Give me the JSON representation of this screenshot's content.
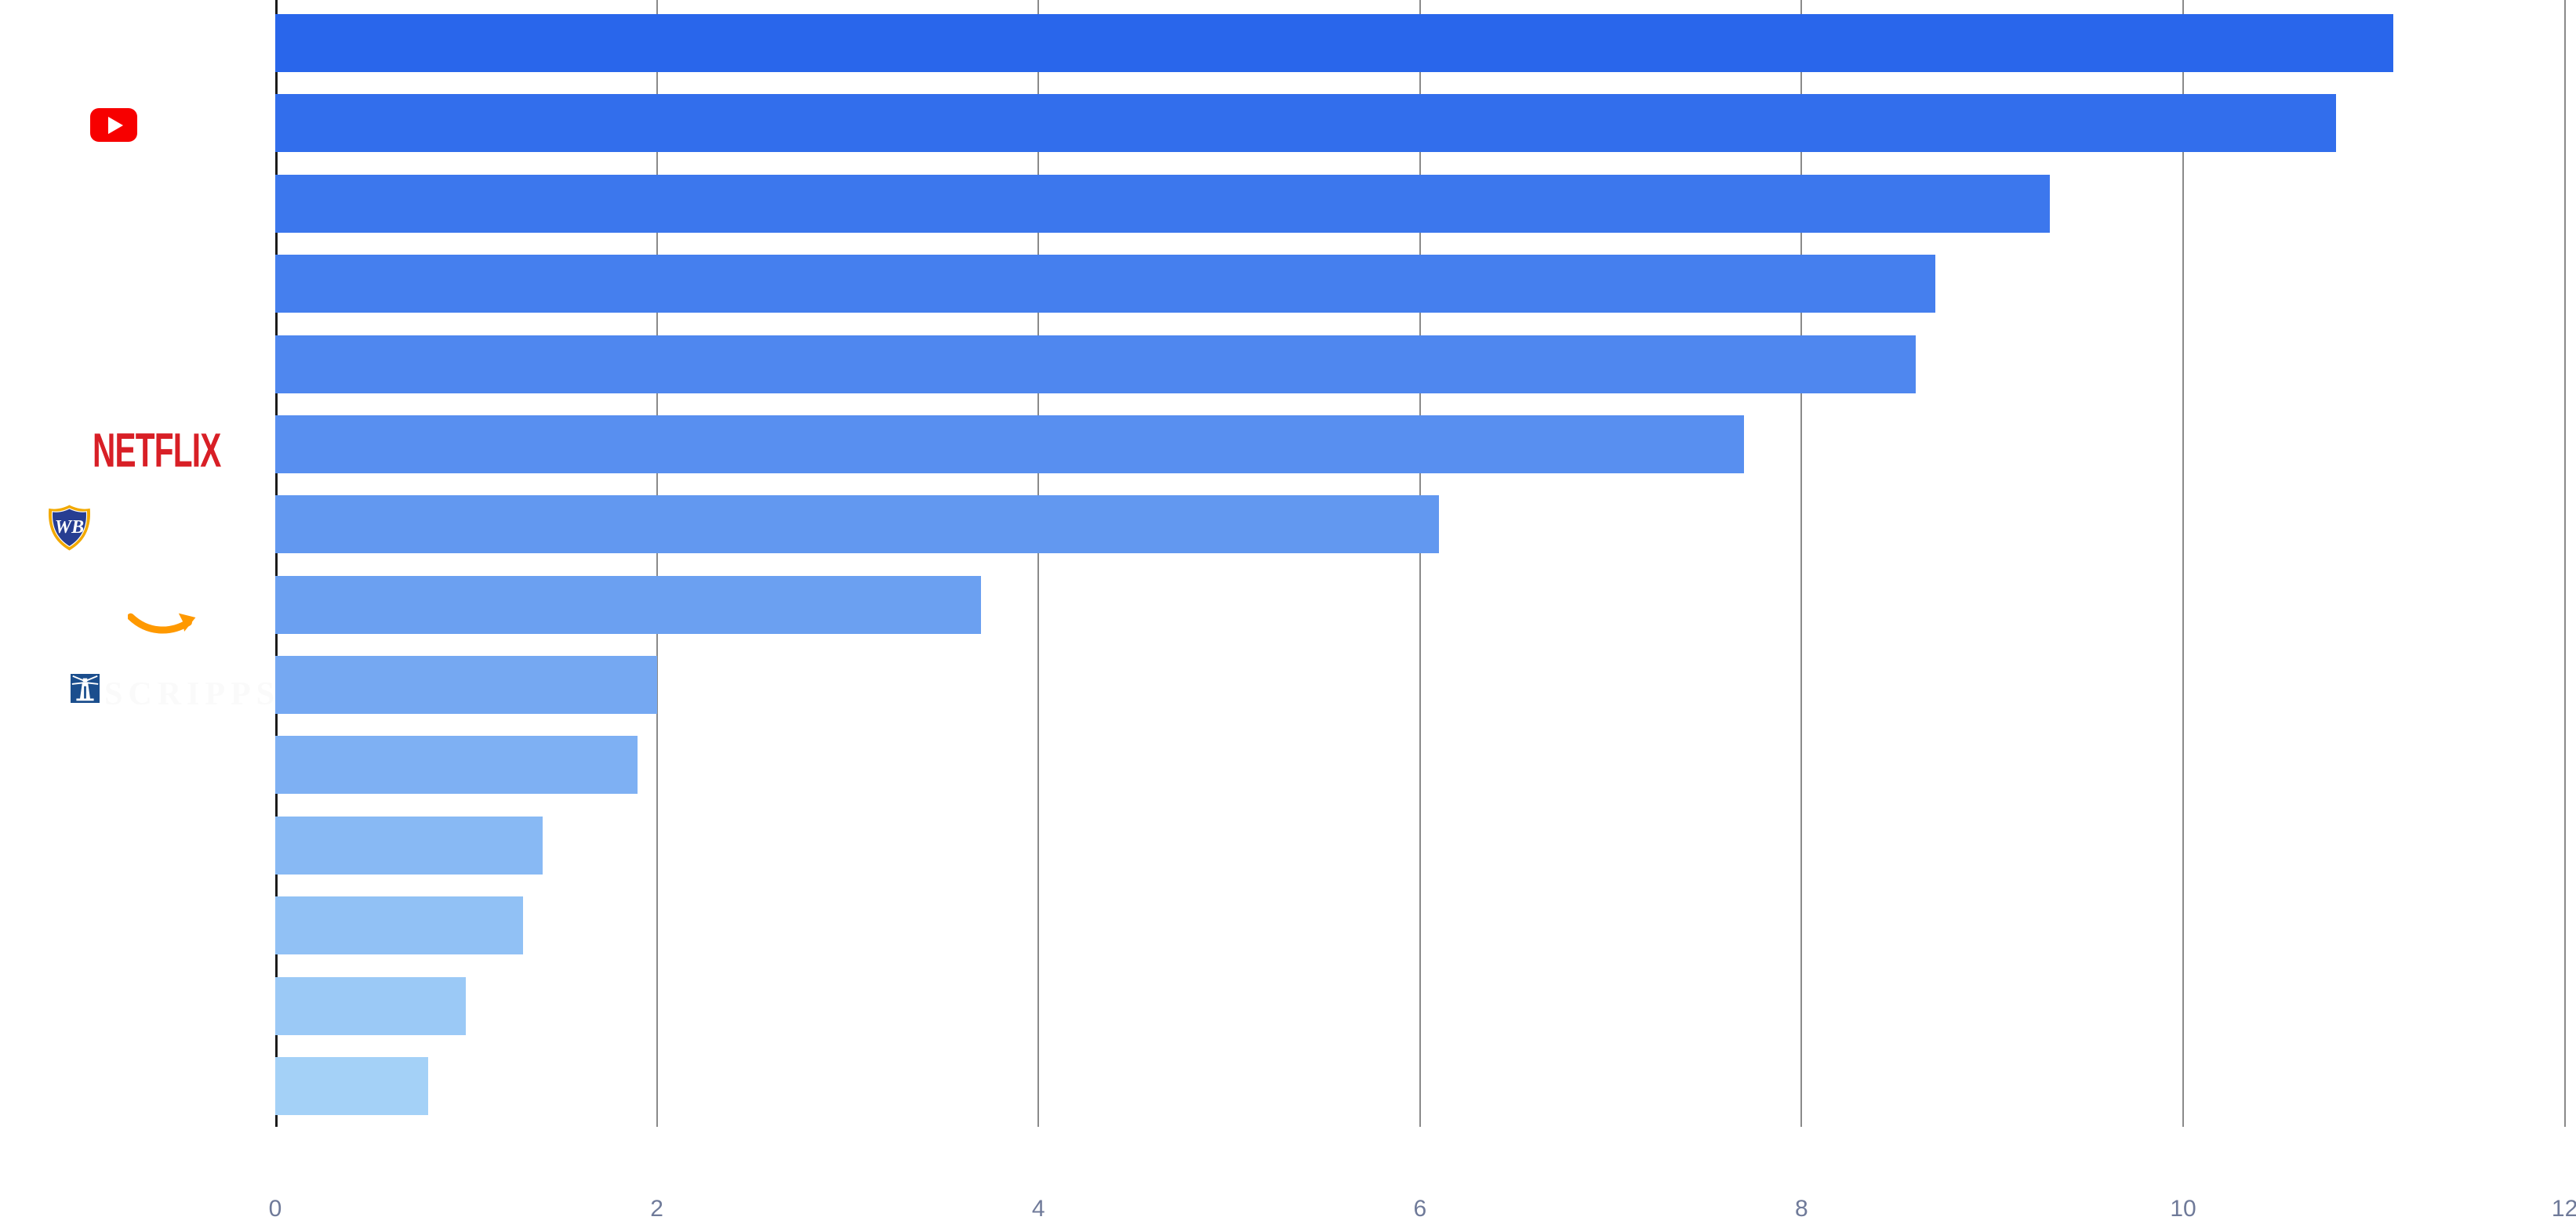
{
  "chart_data": {
    "type": "bar",
    "orientation": "horizontal",
    "title": "",
    "categories": [
      "",
      "YouTube",
      "",
      "",
      "",
      "Netflix",
      "Warner Bros.",
      "Amazon",
      "Scripps",
      "",
      "",
      "",
      "",
      ""
    ],
    "values": [
      11.1,
      10.8,
      9.3,
      8.7,
      8.6,
      7.7,
      6.1,
      3.7,
      2.0,
      1.9,
      1.4,
      1.3,
      1.0,
      0.8
    ],
    "bar_colors": [
      "#2966EB",
      "#326EEC",
      "#3C77ED",
      "#457FEE",
      "#4F87EF",
      "#588FF0",
      "#6298F0",
      "#6BA0F1",
      "#75A8F2",
      "#7EB0F3",
      "#88B9F4",
      "#91C1F5",
      "#9BC9F6",
      "#A4D1F7"
    ],
    "x_ticks": [
      "0",
      "2",
      "4",
      "6",
      "8",
      "10",
      "12"
    ],
    "xlim": [
      0,
      12.05
    ],
    "grid": true,
    "legend_position": "none",
    "axis_label_color": "#6F7A99",
    "gridline_color": "#8a8a8a",
    "axis_line_color": "#1c1c1c"
  },
  "logos": {
    "netflix_text": "NETFLIX",
    "wb_monogram": "WB",
    "scripps_text": "SCRIPPS",
    "youtube_color": "#f70000",
    "netflix_color": "#D81F26",
    "amazon_smile_color": "#FF9900",
    "scripps_blue": "#1B4E8D",
    "wb_gold": "#F2A900",
    "wb_blue": "#273E92"
  }
}
